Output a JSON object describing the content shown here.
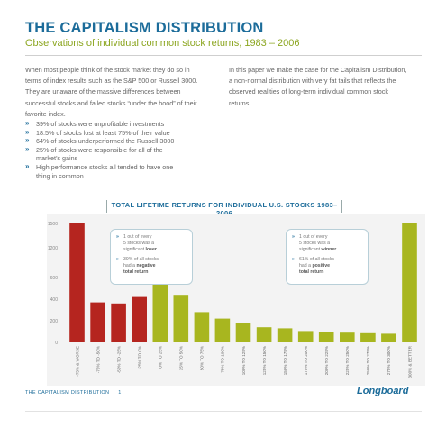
{
  "header": {
    "title": "THE CAPITALISM DISTRIBUTION",
    "subtitle": "Observations of individual common stock returns, 1983 – 2006"
  },
  "intro": {
    "left": "When most people think of the stock market they do so in terms of index results such as the S&P 500 or Russell 3000. They are unaware of the massive differences between successful stocks and failed stocks “under the hood” of their favorite index.",
    "right": "In this paper we make the case for the Capitalism Distribution, a non-normal distribution with very fat tails that reflects the observed realities of long-term individual common stock returns."
  },
  "bullets": [
    "39% of stocks were unprofitable investments",
    "18.5% of stocks lost at least 75% of their value",
    "64% of stocks underperformed the Russell 3000",
    "25% of stocks were responsible for all of the market’s gains",
    "High performance stocks all tended to have one thing in common"
  ],
  "chart_data": {
    "type": "bar",
    "title": "TOTAL LIFETIME RETURNS FOR INDIVIDUAL U.S. STOCKS 1983–2006",
    "categories": [
      "-75% & WORSE",
      "-75% TO -50%",
      "-50% TO -25%",
      "-25% TO 0%",
      "0% TO 25%",
      "25% TO 50%",
      "50% TO 75%",
      "75% TO 100%",
      "100% TO 125%",
      "125% TO 150%",
      "150% TO 175%",
      "175% TO 200%",
      "200% TO 225%",
      "225% TO 250%",
      "250% TO 275%",
      "275% TO 300%",
      "300% & BETTER"
    ],
    "values": [
      1500,
      370,
      360,
      420,
      540,
      440,
      280,
      220,
      180,
      140,
      130,
      105,
      95,
      90,
      85,
      80,
      1500
    ],
    "colors": [
      "#b5251f",
      "#b5251f",
      "#b5251f",
      "#b5251f",
      "#a8b61f",
      "#a8b61f",
      "#a8b61f",
      "#a8b61f",
      "#a8b61f",
      "#a8b61f",
      "#a8b61f",
      "#a8b61f",
      "#a8b61f",
      "#a8b61f",
      "#a8b61f",
      "#a8b61f",
      "#a8b61f"
    ],
    "ytick_labels": [
      "0",
      "200",
      "400",
      "600",
      "1200",
      "1500"
    ],
    "ylim": [
      0,
      1500
    ]
  },
  "callouts": {
    "loser": {
      "line1_a": "1 out of every",
      "line1_b": "5 stocks was a",
      "line1_c": "significant",
      "line1_bold": "loser",
      "line2_a": "39% of all stocks",
      "line2_b": "had a",
      "line2_bold1": "negative",
      "line2_bold2": "total return"
    },
    "winner": {
      "line1_a": "1 out of every",
      "line1_b": "5 stocks was a",
      "line1_c": "significant",
      "line1_bold": "winner",
      "line2_a": "61% of all stocks",
      "line2_b": "had a",
      "line2_bold1": "positive",
      "line2_bold2": "total return"
    }
  },
  "footer": {
    "label": "THE CAPITALISM DISTRIBUTION",
    "page": "1",
    "logo": "Longboard"
  },
  "colors": {
    "brand_blue": "#1c6c9a",
    "subtitle_green": "#8ca621",
    "negative_red": "#b5251f",
    "positive_green": "#a8b61f"
  }
}
